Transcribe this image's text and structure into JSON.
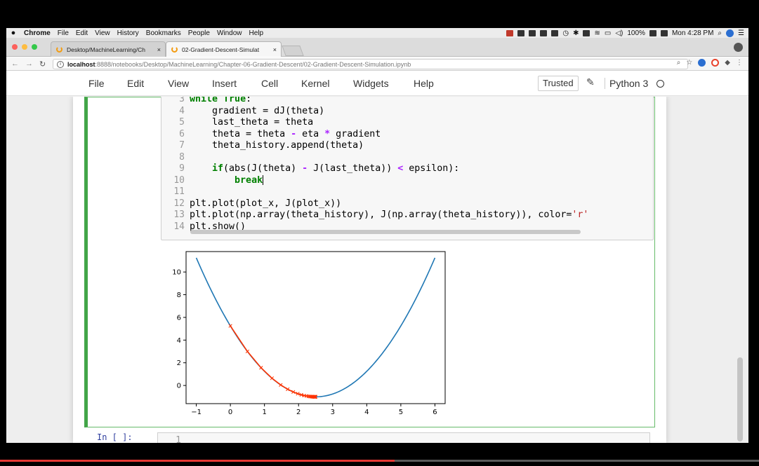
{
  "macmenu": {
    "app": "Chrome",
    "items": [
      "File",
      "Edit",
      "View",
      "History",
      "Bookmarks",
      "People",
      "Window",
      "Help"
    ],
    "battery": "100%",
    "clock": "Mon 4:28 PM"
  },
  "tabs": [
    {
      "label": "Desktop/MachineLearning/Ch"
    },
    {
      "label": "02-Gradient-Descent-Simulat"
    }
  ],
  "address": {
    "host": "localhost",
    "rest": ":8888/notebooks/Desktop/MachineLearning/Chapter-06-Gradient-Descent/02-Gradient-Descent-Simulation.ipynb"
  },
  "jupyter": {
    "menu": [
      "File",
      "Edit",
      "View",
      "Insert",
      "Cell",
      "Kernel",
      "Widgets",
      "Help"
    ],
    "trusted": "Trusted",
    "kernel": "Python 3"
  },
  "code_lines": [
    {
      "n": "3",
      "html": "<span class='kw'>while</span> <span class='kw'>True</span>:"
    },
    {
      "n": "4",
      "html": "    gradient = dJ(theta)"
    },
    {
      "n": "5",
      "html": "    last_theta = theta"
    },
    {
      "n": "6",
      "html": "    theta = theta <span class='op'>-</span> eta <span class='op'>*</span> gradient"
    },
    {
      "n": "7",
      "html": "    theta_history.append(theta)"
    },
    {
      "n": "8",
      "html": ""
    },
    {
      "n": "9",
      "html": "    <span class='kw'>if</span>(abs(J(theta) <span class='op'>-</span> J(last_theta)) <span class='op'>&lt;</span> epsilon):"
    },
    {
      "n": "10",
      "html": "        <span class='kw'>break</span><span class='cursor'></span>"
    },
    {
      "n": "11",
      "html": ""
    },
    {
      "n": "12",
      "html": "plt.plot(plot_x, J(plot_x))"
    },
    {
      "n": "13",
      "html": "plt.plot(np.array(theta_history), J(np.array(theta_history)), color=<span class='str'>'r'</span>"
    },
    {
      "n": "14",
      "html": "plt.show()"
    }
  ],
  "next_cell": {
    "prompt": "In [ ]:",
    "line": "1"
  },
  "video_progress": 0.52,
  "chart_data": {
    "type": "line",
    "title": "",
    "xlabel": "",
    "ylabel": "",
    "xlim": [
      -1.3,
      6.3
    ],
    "ylim": [
      -1.6,
      11.8
    ],
    "xticks": [
      -1,
      0,
      1,
      2,
      3,
      4,
      5,
      6
    ],
    "yticks": [
      0,
      2,
      4,
      6,
      8,
      10
    ],
    "grid": false,
    "series": [
      {
        "color": "#1f77b4",
        "function": "y = (x - 2.5)^2 - 1",
        "x_range": [
          -1,
          6
        ],
        "points": 141
      },
      {
        "color": "#ff3300",
        "marker": "x",
        "x": [
          0.0,
          0.5,
          0.9,
          1.22,
          1.476,
          1.681,
          1.845,
          1.976,
          2.081,
          2.165,
          2.232,
          2.286,
          2.329,
          2.363,
          2.39,
          2.412,
          2.43,
          2.444,
          2.455,
          2.464,
          2.471,
          2.477,
          2.482,
          2.486,
          2.489,
          2.491,
          2.493,
          2.495,
          2.496,
          2.497,
          2.499
        ]
      }
    ]
  }
}
